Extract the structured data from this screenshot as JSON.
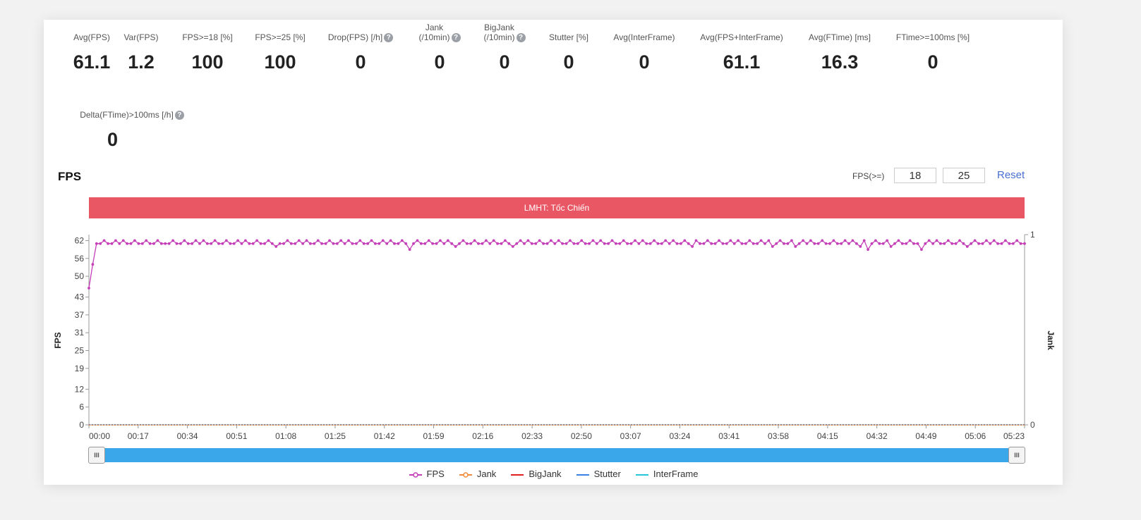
{
  "stats": [
    {
      "label": "Avg(FPS)",
      "value": "61.1",
      "help": false
    },
    {
      "label": "Var(FPS)",
      "value": "1.2",
      "help": false
    },
    {
      "label": "FPS>=18 [%]",
      "value": "100",
      "help": false
    },
    {
      "label": "FPS>=25 [%]",
      "value": "100",
      "help": false
    },
    {
      "label": "Drop(FPS) [/h]",
      "value": "0",
      "help": true
    },
    {
      "label": "Jank\n(/10min)",
      "value": "0",
      "help": true
    },
    {
      "label": "BigJank\n(/10min)",
      "value": "0",
      "help": true
    },
    {
      "label": "Stutter [%]",
      "value": "0",
      "help": false
    },
    {
      "label": "Avg(InterFrame)",
      "value": "0",
      "help": false
    },
    {
      "label": "Avg(FPS+InterFrame)",
      "value": "61.1",
      "help": false
    },
    {
      "label": "Avg(FTime) [ms]",
      "value": "16.3",
      "help": false
    },
    {
      "label": "FTime>=100ms [%]",
      "value": "0",
      "help": false
    },
    {
      "label": "Delta(FTime)>100ms [/h]",
      "value": "0",
      "help": true
    }
  ],
  "section_title": "FPS",
  "fps_filter": {
    "label": "FPS(>=)",
    "low": "18",
    "high": "25",
    "reset_label": "Reset"
  },
  "help_glyph": "?",
  "banner_label": "LMHT: Tốc Chiến",
  "slider_handle_glyph": "III",
  "colors": {
    "fps": "#c43fb8",
    "jank": "#f28a3a",
    "bigjank": "#e02020",
    "stutter": "#3b82e6",
    "interframe": "#27c5d8",
    "banner": "#e95765",
    "slider": "#3aa7ea"
  },
  "chart_data": {
    "type": "line",
    "title": "FPS",
    "ylabel": "FPS",
    "y2label": "Jank",
    "ylim": [
      0,
      64
    ],
    "y2lim": [
      0,
      1
    ],
    "yticks": [
      "0",
      "6",
      "12",
      "19",
      "25",
      "31",
      "37",
      "43",
      "50",
      "56",
      "62"
    ],
    "y2ticks": [
      "0",
      "1"
    ],
    "xticks": [
      "00:00",
      "00:17",
      "00:34",
      "00:51",
      "01:08",
      "01:25",
      "01:42",
      "01:59",
      "02:16",
      "02:33",
      "02:50",
      "03:07",
      "03:24",
      "03:41",
      "03:58",
      "04:15",
      "04:32",
      "04:49",
      "05:06",
      "05:23"
    ],
    "x_duration_s": 323,
    "legend": [
      "FPS",
      "Jank",
      "BigJank",
      "Stutter",
      "InterFrame"
    ],
    "legend_position": "bottom",
    "series": [
      {
        "name": "FPS",
        "marker": "circle",
        "values": [
          46,
          54,
          61,
          61,
          62,
          61,
          61,
          62,
          61,
          62,
          61,
          61,
          62,
          61,
          61,
          62,
          61,
          61,
          62,
          61,
          61,
          61,
          62,
          61,
          61,
          62,
          61,
          61,
          62,
          61,
          62,
          61,
          61,
          62,
          61,
          61,
          62,
          61,
          61,
          62,
          61,
          62,
          61,
          61,
          62,
          61,
          61,
          62,
          61,
          60,
          61,
          61,
          62,
          61,
          61,
          62,
          61,
          62,
          61,
          61,
          62,
          61,
          61,
          62,
          61,
          61,
          62,
          61,
          62,
          61,
          61,
          62,
          61,
          61,
          62,
          61,
          61,
          62,
          61,
          62,
          61,
          61,
          62,
          61,
          59,
          61,
          62,
          61,
          61,
          62,
          61,
          61,
          62,
          61,
          62,
          61,
          60,
          61,
          62,
          61,
          61,
          62,
          61,
          61,
          62,
          61,
          62,
          61,
          61,
          62,
          61,
          60,
          61,
          62,
          61,
          62,
          61,
          61,
          62,
          61,
          61,
          62,
          61,
          62,
          61,
          61,
          62,
          61,
          61,
          62,
          61,
          61,
          62,
          61,
          62,
          61,
          61,
          62,
          61,
          61,
          62,
          61,
          61,
          62,
          61,
          62,
          61,
          61,
          62,
          61,
          61,
          62,
          61,
          62,
          61,
          61,
          62,
          61,
          60,
          62,
          61,
          61,
          62,
          61,
          61,
          62,
          61,
          61,
          62,
          61,
          62,
          61,
          61,
          62,
          61,
          61,
          62,
          61,
          62,
          60,
          61,
          62,
          61,
          61,
          62,
          60,
          61,
          62,
          61,
          62,
          61,
          61,
          62,
          61,
          61,
          62,
          61,
          61,
          62,
          61,
          62,
          61,
          60,
          62,
          59,
          61,
          62,
          61,
          61,
          62,
          60,
          61,
          62,
          61,
          61,
          62,
          61,
          61,
          59,
          61,
          62,
          61,
          62,
          61,
          61,
          62,
          61,
          61,
          62,
          61,
          60,
          61,
          62,
          61,
          61,
          62,
          61,
          62,
          61,
          61,
          62,
          61,
          61,
          62,
          61,
          61
        ]
      },
      {
        "name": "Jank",
        "values": [
          0,
          0
        ]
      },
      {
        "name": "BigJank",
        "values": [
          0,
          0
        ]
      },
      {
        "name": "Stutter",
        "values": [
          0,
          0
        ]
      },
      {
        "name": "InterFrame",
        "values": [
          0,
          0
        ]
      }
    ]
  }
}
